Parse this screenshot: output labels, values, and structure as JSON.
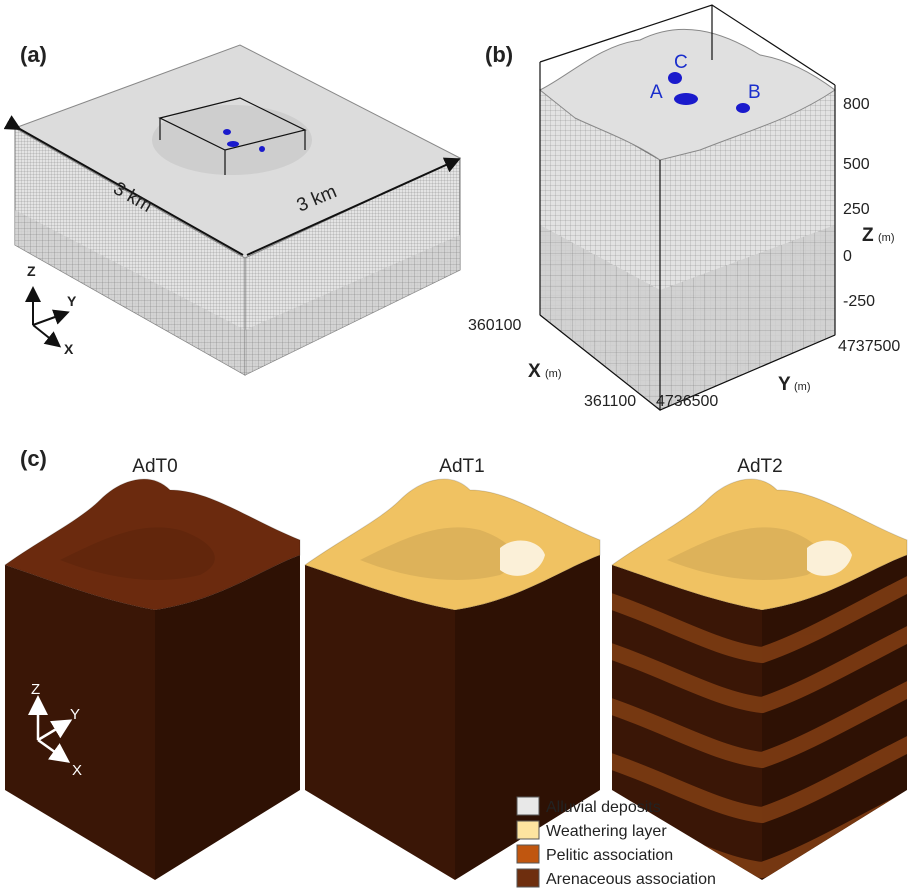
{
  "panel_a": {
    "label": "(a)",
    "width_label": "3 km",
    "depth_label": "3 km",
    "axes": {
      "z": "Z",
      "y": "Y",
      "x": "X"
    }
  },
  "panel_b": {
    "label": "(b)",
    "sites": [
      "C",
      "A",
      "B"
    ],
    "z_axis": {
      "title": "Z",
      "unit": "(m)",
      "ticks": [
        "800",
        "500",
        "250",
        "0",
        "-250"
      ]
    },
    "x_axis": {
      "title": "X",
      "unit": "(m)",
      "ticks": [
        "360100",
        "361100"
      ]
    },
    "y_axis": {
      "title": "Y",
      "unit": "(m)",
      "ticks": [
        "4736500",
        "4737500"
      ]
    }
  },
  "panel_c": {
    "label": "(c)",
    "models": [
      "AdT0",
      "AdT1",
      "AdT2"
    ],
    "axes": {
      "z": "Z",
      "y": "Y",
      "x": "X"
    },
    "legend": [
      "Alluvial deposits",
      "Weathering layer",
      "Pelitic association",
      "Arenaceous association"
    ]
  }
}
